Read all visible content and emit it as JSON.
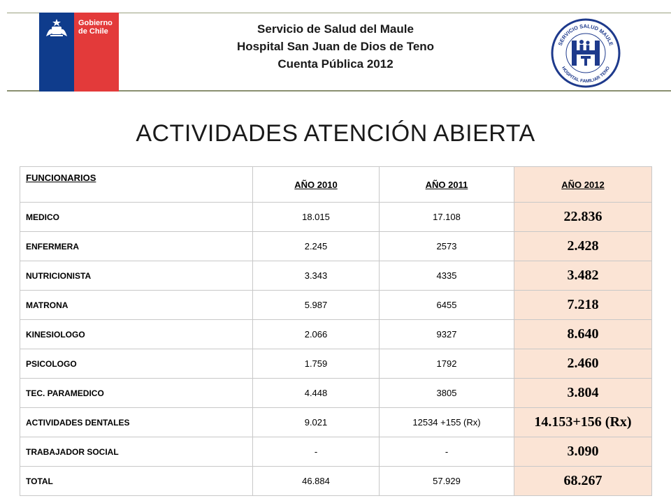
{
  "header": {
    "lines": [
      "Servicio de Salud del Maule",
      "Hospital San Juan de Dios de Teno",
      "Cuenta Pública 2012"
    ],
    "gobierno_logo_text": [
      "Gobierno",
      "de Chile"
    ],
    "hospital_logo_text": [
      "SERVICIO SALUD MAULE",
      "HOSPITAL FAMILIAR TENO"
    ]
  },
  "title": "ACTIVIDADES ATENCIÓN ABIERTA",
  "table": {
    "columns": [
      "FUNCIONARIOS",
      "AÑO 2010",
      "AÑO 2011",
      "AÑO 2012"
    ],
    "rows": [
      {
        "label": "MEDICO",
        "y2010": "18.015",
        "y2011": "17.108",
        "y2012": "22.836"
      },
      {
        "label": "ENFERMERA",
        "y2010": "2.245",
        "y2011": "2573",
        "y2012": "2.428"
      },
      {
        "label": "NUTRICIONISTA",
        "y2010": "3.343",
        "y2011": "4335",
        "y2012": "3.482"
      },
      {
        "label": "MATRONA",
        "y2010": "5.987",
        "y2011": "6455",
        "y2012": "7.218"
      },
      {
        "label": "KINESIOLOGO",
        "y2010": "2.066",
        "y2011": "9327",
        "y2012": "8.640"
      },
      {
        "label": "PSICOLOGO",
        "y2010": "1.759",
        "y2011": "1792",
        "y2012": "2.460"
      },
      {
        "label": "TEC. PARAMEDICO",
        "y2010": "4.448",
        "y2011": "3805",
        "y2012": "3.804"
      },
      {
        "label": "ACTIVIDADES DENTALES",
        "y2010": "9.021",
        "y2011": "12534 +155 (Rx)",
        "y2012": "14.153+156 (Rx)"
      },
      {
        "label": "TRABAJADOR SOCIAL",
        "y2010": "-",
        "y2011": "-",
        "y2012": "3.090"
      },
      {
        "label": "TOTAL",
        "y2010": "46.884",
        "y2011": "57.929",
        "y2012": "68.267"
      }
    ]
  },
  "colors": {
    "gobierno_blue": "#0f3c8c",
    "gobierno_red": "#e33a3a",
    "highlight_2012": "#fbe4d5",
    "logo_blue": "#1e3a8c"
  }
}
